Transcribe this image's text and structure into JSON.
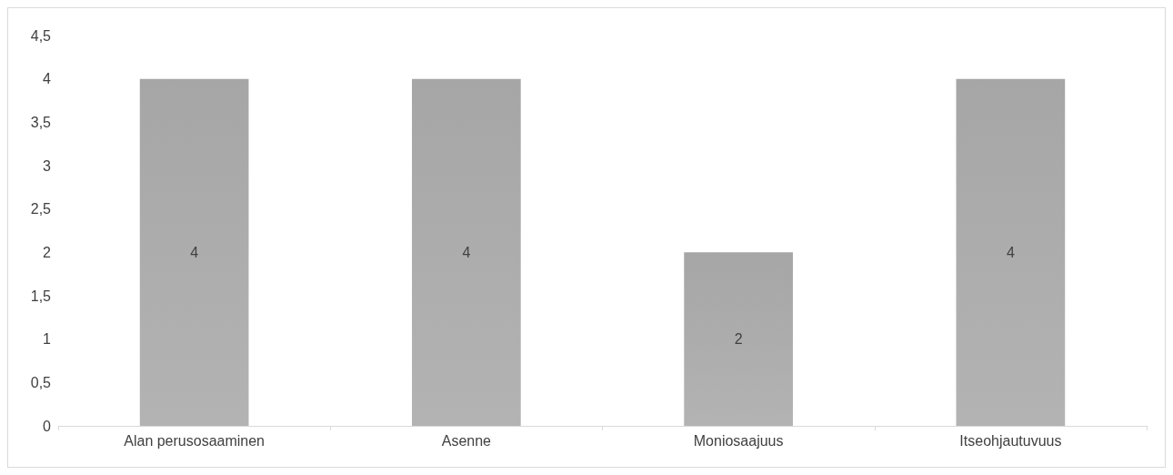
{
  "chart_data": {
    "type": "bar",
    "categories": [
      "Alan perusosaaminen",
      "Asenne",
      "Moniosaajuus",
      "Itseohjautuvuus"
    ],
    "values": [
      4,
      4,
      2,
      4
    ],
    "color": "#a6a6a6",
    "ylim": [
      0,
      4.5
    ],
    "yticks": [
      0,
      {
        "value": 0.5,
        "label": "0,5"
      },
      1,
      {
        "value": 1.5,
        "label": "1,5"
      },
      2,
      {
        "value": 2.5,
        "label": "2,5"
      },
      3,
      {
        "value": 3.5,
        "label": "3,5"
      },
      4,
      {
        "value": 4.5,
        "label": "4,5"
      }
    ],
    "data_labels": true
  }
}
